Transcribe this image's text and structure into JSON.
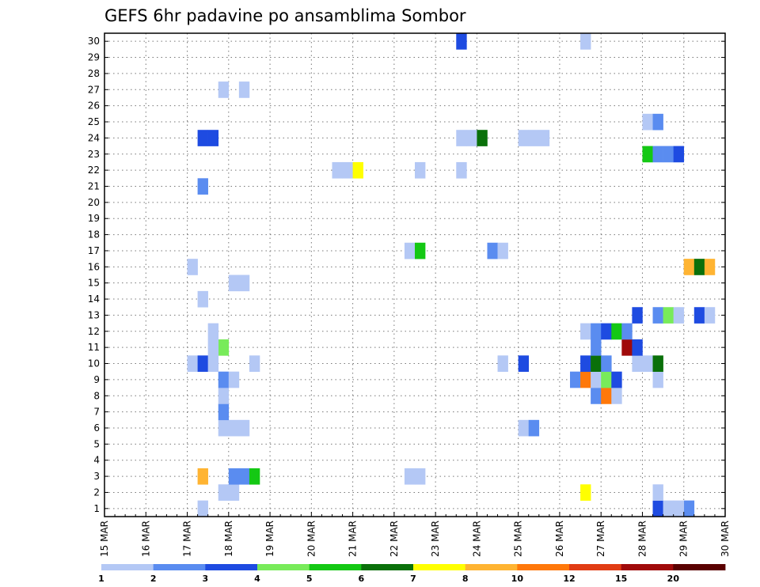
{
  "chart_data": {
    "type": "heatmap",
    "title": "GEFS 6hr padavine po ansamblima Sombor",
    "x_labels": [
      "15 MAR",
      "16 MAR",
      "17 MAR",
      "18 MAR",
      "19 MAR",
      "20 MAR",
      "21 MAR",
      "22 MAR",
      "23 MAR",
      "24 MAR",
      "25 MAR",
      "26 MAR",
      "27 MAR",
      "28 MAR",
      "29 MAR",
      "30 MAR"
    ],
    "x_unit": "6h steps after 15 MAR 00Z",
    "y_labels": [
      "1",
      "2",
      "3",
      "4",
      "5",
      "6",
      "7",
      "8",
      "9",
      "10",
      "11",
      "12",
      "13",
      "14",
      "15",
      "16",
      "17",
      "18",
      "19",
      "20",
      "21",
      "22",
      "23",
      "24",
      "25",
      "26",
      "27",
      "28",
      "29",
      "30"
    ],
    "xlim": [
      0,
      60
    ],
    "ylim": [
      0.5,
      30.5
    ],
    "grid": true,
    "legend": {
      "placement": "bottom",
      "labels": [
        "1",
        "2",
        "3",
        "4",
        "5",
        "6",
        "7",
        "8",
        "10",
        "12",
        "15",
        "20"
      ],
      "colors": [
        "#b4c8f5",
        "#5a8cf0",
        "#1e4be1",
        "#78eb5a",
        "#14c814",
        "#0a700a",
        "#ffff00",
        "#ffb432",
        "#ff780a",
        "#e13c14",
        "#a00a0a",
        "#5a0000"
      ]
    },
    "cells": [
      {
        "x": 56,
        "y": 1,
        "v": 2.5
      },
      {
        "x": 53,
        "y": 1,
        "v": 3.5
      },
      {
        "x": 53,
        "y": 2,
        "v": 1.5
      },
      {
        "x": 54,
        "y": 1,
        "v": 1.5
      },
      {
        "x": 55,
        "y": 1,
        "v": 1.5
      },
      {
        "x": 9,
        "y": 1,
        "v": 1.5
      },
      {
        "x": 11,
        "y": 2,
        "v": 1.5
      },
      {
        "x": 12,
        "y": 2,
        "v": 1.5
      },
      {
        "x": 46,
        "y": 2,
        "v": 7.5
      },
      {
        "x": 9,
        "y": 3,
        "v": 9
      },
      {
        "x": 12,
        "y": 3,
        "v": 2.5
      },
      {
        "x": 13,
        "y": 3,
        "v": 2.5
      },
      {
        "x": 14,
        "y": 3,
        "v": 5.5
      },
      {
        "x": 29,
        "y": 3,
        "v": 1.5
      },
      {
        "x": 30,
        "y": 3,
        "v": 1.5
      },
      {
        "x": 11,
        "y": 6,
        "v": 1.5
      },
      {
        "x": 12,
        "y": 6,
        "v": 1.5
      },
      {
        "x": 13,
        "y": 6,
        "v": 1.5
      },
      {
        "x": 40,
        "y": 6,
        "v": 1.5
      },
      {
        "x": 41,
        "y": 6,
        "v": 2.5
      },
      {
        "x": 11,
        "y": 7,
        "v": 2.5
      },
      {
        "x": 11,
        "y": 8,
        "v": 1.5
      },
      {
        "x": 47,
        "y": 8,
        "v": 2.5
      },
      {
        "x": 48,
        "y": 8,
        "v": 11
      },
      {
        "x": 49,
        "y": 8,
        "v": 1.5
      },
      {
        "x": 11,
        "y": 9,
        "v": 2.5
      },
      {
        "x": 12,
        "y": 9,
        "v": 1.5
      },
      {
        "x": 45,
        "y": 9,
        "v": 2.5
      },
      {
        "x": 46,
        "y": 9,
        "v": 11
      },
      {
        "x": 47,
        "y": 9,
        "v": 1.5
      },
      {
        "x": 48,
        "y": 9,
        "v": 4.5
      },
      {
        "x": 49,
        "y": 9,
        "v": 3.5
      },
      {
        "x": 53,
        "y": 9,
        "v": 1.5
      },
      {
        "x": 8,
        "y": 10,
        "v": 1.5
      },
      {
        "x": 9,
        "y": 10,
        "v": 3.5
      },
      {
        "x": 10,
        "y": 10,
        "v": 1.5
      },
      {
        "x": 14,
        "y": 10,
        "v": 1.5
      },
      {
        "x": 38,
        "y": 10,
        "v": 1.5
      },
      {
        "x": 40,
        "y": 10,
        "v": 3.5
      },
      {
        "x": 46,
        "y": 10,
        "v": 3.5
      },
      {
        "x": 47,
        "y": 10,
        "v": 6.5
      },
      {
        "x": 48,
        "y": 10,
        "v": 2.5
      },
      {
        "x": 51,
        "y": 10,
        "v": 1.5
      },
      {
        "x": 52,
        "y": 10,
        "v": 1.5
      },
      {
        "x": 53,
        "y": 10,
        "v": 6.5
      },
      {
        "x": 11,
        "y": 11,
        "v": 4.5
      },
      {
        "x": 10,
        "y": 11,
        "v": 1.5
      },
      {
        "x": 47,
        "y": 11,
        "v": 2.5
      },
      {
        "x": 50,
        "y": 11,
        "v": 17
      },
      {
        "x": 51,
        "y": 11,
        "v": 3.5
      },
      {
        "x": 10,
        "y": 12,
        "v": 1.5
      },
      {
        "x": 46,
        "y": 12,
        "v": 1.5
      },
      {
        "x": 47,
        "y": 12,
        "v": 2.5
      },
      {
        "x": 48,
        "y": 12,
        "v": 3.5
      },
      {
        "x": 49,
        "y": 12,
        "v": 5.5
      },
      {
        "x": 50,
        "y": 12,
        "v": 2.5
      },
      {
        "x": 51,
        "y": 13,
        "v": 3.5
      },
      {
        "x": 53,
        "y": 13,
        "v": 2.5
      },
      {
        "x": 54,
        "y": 13,
        "v": 4.5
      },
      {
        "x": 55,
        "y": 13,
        "v": 1.5
      },
      {
        "x": 57,
        "y": 13,
        "v": 3.5
      },
      {
        "x": 58,
        "y": 13,
        "v": 1.5
      },
      {
        "x": 9,
        "y": 14,
        "v": 1.5
      },
      {
        "x": 12,
        "y": 15,
        "v": 1.5
      },
      {
        "x": 13,
        "y": 15,
        "v": 1.5
      },
      {
        "x": 8,
        "y": 16,
        "v": 1.5
      },
      {
        "x": 56,
        "y": 16,
        "v": 9
      },
      {
        "x": 57,
        "y": 16,
        "v": 6.5
      },
      {
        "x": 58,
        "y": 16,
        "v": 9
      },
      {
        "x": 29,
        "y": 17,
        "v": 1.5
      },
      {
        "x": 30,
        "y": 17,
        "v": 5.5
      },
      {
        "x": 37,
        "y": 17,
        "v": 2.5
      },
      {
        "x": 38,
        "y": 17,
        "v": 1.5
      },
      {
        "x": 9,
        "y": 21,
        "v": 2.5
      },
      {
        "x": 22,
        "y": 22,
        "v": 1.5
      },
      {
        "x": 23,
        "y": 22,
        "v": 1.5
      },
      {
        "x": 24,
        "y": 22,
        "v": 7.5
      },
      {
        "x": 30,
        "y": 22,
        "v": 1.5
      },
      {
        "x": 34,
        "y": 22,
        "v": 1.5
      },
      {
        "x": 52,
        "y": 23,
        "v": 5.5
      },
      {
        "x": 53,
        "y": 23,
        "v": 2.5
      },
      {
        "x": 54,
        "y": 23,
        "v": 2.5
      },
      {
        "x": 55,
        "y": 23,
        "v": 3.5
      },
      {
        "x": 9,
        "y": 24,
        "v": 3.5
      },
      {
        "x": 10,
        "y": 24,
        "v": 3.5
      },
      {
        "x": 34,
        "y": 24,
        "v": 1.5
      },
      {
        "x": 35,
        "y": 24,
        "v": 1.5
      },
      {
        "x": 36,
        "y": 24,
        "v": 6.5
      },
      {
        "x": 40,
        "y": 24,
        "v": 1.5
      },
      {
        "x": 41,
        "y": 24,
        "v": 1.5
      },
      {
        "x": 42,
        "y": 24,
        "v": 1.5
      },
      {
        "x": 52,
        "y": 25,
        "v": 1.5
      },
      {
        "x": 53,
        "y": 25,
        "v": 2.5
      },
      {
        "x": 11,
        "y": 27,
        "v": 1.5
      },
      {
        "x": 13,
        "y": 27,
        "v": 1.5
      },
      {
        "x": 34,
        "y": 30,
        "v": 3.5
      },
      {
        "x": 46,
        "y": 30,
        "v": 1.5
      }
    ]
  }
}
